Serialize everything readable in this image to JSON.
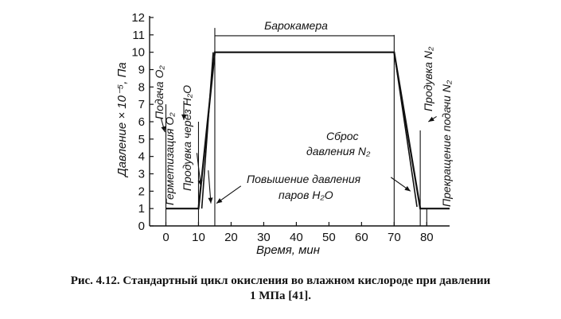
{
  "chart_data": {
    "type": "line",
    "title": "",
    "xlabel": "Время, мин",
    "ylabel": "Давление × 10⁻⁵, Па",
    "xlim": [
      -5,
      87
    ],
    "ylim": [
      0,
      12
    ],
    "x_ticks": [
      "0",
      "10",
      "20",
      "30",
      "40",
      "50",
      "60",
      "70",
      "80"
    ],
    "y_ticks": [
      "0",
      "1",
      "2",
      "3",
      "4",
      "5",
      "6",
      "7",
      "8",
      "9",
      "10",
      "11",
      "12"
    ],
    "grid": false,
    "series": [
      {
        "name": "",
        "x": [
          0,
          10,
          15,
          70,
          78,
          87
        ],
        "y": [
          1,
          1,
          10,
          10,
          1,
          1
        ]
      },
      {
        "name": "",
        "x": [
          11,
          14.5
        ],
        "y": [
          1,
          10
        ]
      },
      {
        "name": "",
        "x": [
          70,
          77
        ],
        "y": [
          10,
          1.1
        ]
      }
    ],
    "annotations": {
      "chamber": "Барокамера",
      "o2_supply": "Подача O₂",
      "sealing": "Герметизация O₂",
      "purge_h2o": "Продувка через H₂O",
      "vapor_l1": "Повышение давления",
      "vapor_l2": "паров H₂O",
      "release_l1": "Сброс",
      "release_l2": "давления N₂",
      "purge_n2": "Продувка N₂",
      "stop_n2": "Прекращение подачи N₂"
    }
  },
  "caption": {
    "line1": "Рис. 4.12. Стандартный цикл окисления во влажном кислороде при давлении",
    "line2": "1 МПа [41]."
  }
}
